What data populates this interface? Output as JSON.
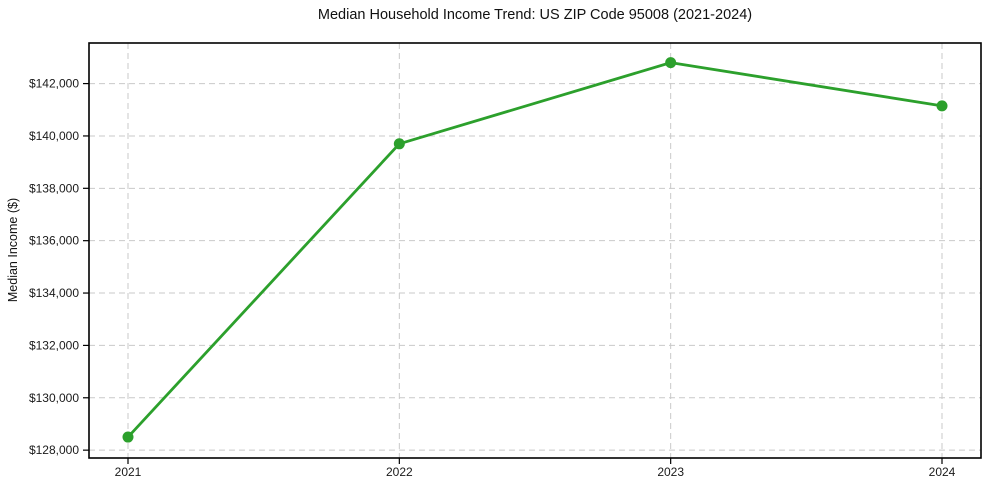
{
  "chart_data": {
    "type": "line",
    "title": "Median Household Income Trend: US ZIP Code 95008 (2021-2024)",
    "xlabel": "",
    "ylabel": "Median Income ($)",
    "categories": [
      "2021",
      "2022",
      "2023",
      "2024"
    ],
    "series": [
      {
        "name": "Median Household Income",
        "values": [
          128500,
          139700,
          142800,
          141150
        ]
      }
    ],
    "ylim": [
      127700,
      143550
    ],
    "yticks": [
      128000,
      130000,
      132000,
      134000,
      136000,
      138000,
      140000,
      142000
    ],
    "ytick_prefix": "$",
    "grid": true,
    "grid_style": "dashed",
    "legend_position": "none",
    "colors": {
      "line": "#2ca02c",
      "marker": "#2ca02c",
      "grid": "#c9c9c9",
      "axis": "#000000",
      "background": "#ffffff",
      "text": "#1a1a1a"
    }
  }
}
